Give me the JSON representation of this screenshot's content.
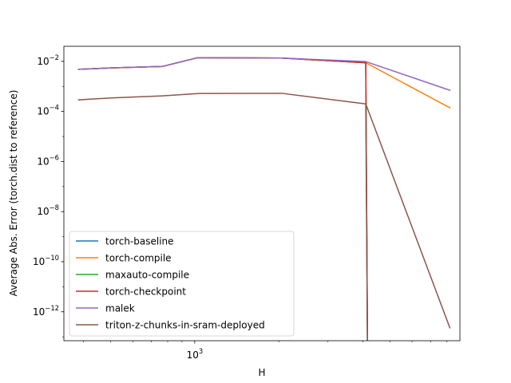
{
  "chart_data": {
    "type": "line",
    "title": "",
    "xlabel": "H",
    "ylabel": "Average Abs. Error (torch.dist to reference)",
    "xscale": "log",
    "yscale": "log",
    "xlim": [
      340,
      8900
    ],
    "ylim": [
      7e-14,
      0.04
    ],
    "x_ticks": [
      {
        "value": 1000,
        "label": "10^3"
      }
    ],
    "y_ticks": [
      {
        "value": 1e-12,
        "label": "10^-12"
      },
      {
        "value": 1e-10,
        "label": "10^-10"
      },
      {
        "value": 1e-08,
        "label": "10^-8"
      },
      {
        "value": 1e-06,
        "label": "10^-6"
      },
      {
        "value": 0.0001,
        "label": "10^-4"
      },
      {
        "value": 0.01,
        "label": "10^-2"
      }
    ],
    "grid": false,
    "legend_position": "lower-left",
    "series": [
      {
        "name": "torch-baseline",
        "color": "#1f77b4",
        "points": [
          [
            384,
            0.0048
          ],
          [
            512,
            0.0055
          ],
          [
            768,
            0.0063
          ],
          [
            1024,
            0.014
          ],
          [
            2048,
            0.0135
          ],
          [
            4096,
            0.0088
          ],
          [
            4160,
            1e-20
          ]
        ]
      },
      {
        "name": "torch-compile",
        "color": "#ff7f0e",
        "points": [
          [
            384,
            0.0048
          ],
          [
            512,
            0.0055
          ],
          [
            768,
            0.0063
          ],
          [
            1024,
            0.014
          ],
          [
            2048,
            0.0135
          ],
          [
            4096,
            0.0088
          ],
          [
            8192,
            0.00014
          ]
        ]
      },
      {
        "name": "maxauto-compile",
        "color": "#2ca02c",
        "points": [
          [
            384,
            0.0048
          ],
          [
            512,
            0.0055
          ],
          [
            768,
            0.0063
          ],
          [
            1024,
            0.014
          ],
          [
            2048,
            0.0135
          ],
          [
            4096,
            0.0088
          ],
          [
            4160,
            1e-20
          ]
        ]
      },
      {
        "name": "torch-checkpoint",
        "color": "#d62728",
        "points": [
          [
            384,
            0.0048
          ],
          [
            512,
            0.0055
          ],
          [
            768,
            0.0063
          ],
          [
            1024,
            0.014
          ],
          [
            2048,
            0.0135
          ],
          [
            4096,
            0.0088
          ],
          [
            4160,
            1e-20
          ]
        ]
      },
      {
        "name": "malek",
        "color": "#9467bd",
        "points": [
          [
            384,
            0.0048
          ],
          [
            512,
            0.0055
          ],
          [
            768,
            0.0063
          ],
          [
            1024,
            0.014
          ],
          [
            2048,
            0.0135
          ],
          [
            4096,
            0.0098
          ],
          [
            8192,
            0.0007
          ]
        ]
      },
      {
        "name": "triton-z-chunks-in-sram-deployed",
        "color": "#8c564b",
        "points": [
          [
            384,
            0.00029
          ],
          [
            512,
            0.00035
          ],
          [
            768,
            0.00042
          ],
          [
            1024,
            0.00052
          ],
          [
            2048,
            0.00053
          ],
          [
            4096,
            0.0002
          ],
          [
            4160,
            1e-20
          ],
          [
            4096,
            0.0002
          ],
          [
            8192,
            2.3e-13
          ]
        ]
      }
    ]
  }
}
